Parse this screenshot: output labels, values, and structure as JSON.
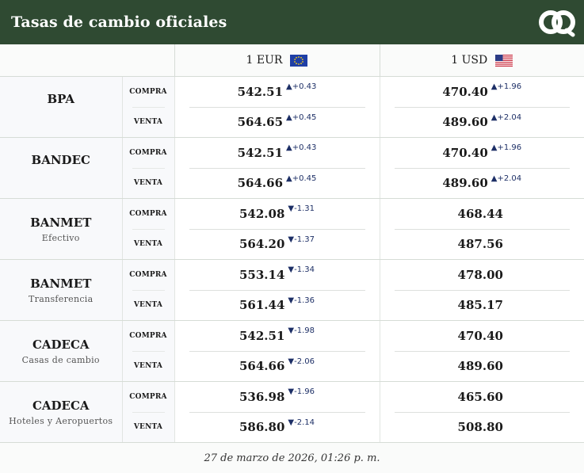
{
  "header": {
    "title": "Tasas de cambio oficiales",
    "logo_icon": "brand-logo"
  },
  "columns": {
    "eur": "1 EUR",
    "usd": "1 USD"
  },
  "labels": {
    "buy": "COMPRA",
    "sell": "VENTA"
  },
  "banks": [
    {
      "name": "BPA",
      "sub": "ᅟ",
      "eur": {
        "buy": "542.51",
        "buy_delta": "▲+0.43",
        "sell": "564.65",
        "sell_delta": "▲+0.45"
      },
      "usd": {
        "buy": "470.40",
        "buy_delta": "▲+1.96",
        "sell": "489.60",
        "sell_delta": "▲+2.04"
      }
    },
    {
      "name": "BANDEC",
      "sub": "ᅟ",
      "eur": {
        "buy": "542.51",
        "buy_delta": "▲+0.43",
        "sell": "564.66",
        "sell_delta": "▲+0.45"
      },
      "usd": {
        "buy": "470.40",
        "buy_delta": "▲+1.96",
        "sell": "489.60",
        "sell_delta": "▲+2.04"
      }
    },
    {
      "name": "BANMET",
      "sub": "Efectivo",
      "eur": {
        "buy": "542.08",
        "buy_delta": "▼-1.31",
        "sell": "564.20",
        "sell_delta": "▼-1.37"
      },
      "usd": {
        "buy": "468.44",
        "buy_delta": "",
        "sell": "487.56",
        "sell_delta": ""
      }
    },
    {
      "name": "BANMET",
      "sub": "Transferencia",
      "eur": {
        "buy": "553.14",
        "buy_delta": "▼-1.34",
        "sell": "561.44",
        "sell_delta": "▼-1.36"
      },
      "usd": {
        "buy": "478.00",
        "buy_delta": "",
        "sell": "485.17",
        "sell_delta": ""
      }
    },
    {
      "name": "CADECA",
      "sub": "Casas de cambio",
      "eur": {
        "buy": "542.51",
        "buy_delta": "▼-1.98",
        "sell": "564.66",
        "sell_delta": "▼-2.06"
      },
      "usd": {
        "buy": "470.40",
        "buy_delta": "",
        "sell": "489.60",
        "sell_delta": ""
      }
    },
    {
      "name": "CADECA",
      "sub": "Hoteles y Aeropuertos",
      "eur": {
        "buy": "536.98",
        "buy_delta": "▼-1.96",
        "sell": "586.80",
        "sell_delta": "▼-2.14"
      },
      "usd": {
        "buy": "465.60",
        "buy_delta": "",
        "sell": "508.80",
        "sell_delta": ""
      }
    }
  ],
  "footer": {
    "timestamp": "27 de marzo de 2026, 01:26 p. m."
  },
  "colors": {
    "header_bg": "#2f4a32",
    "delta": "#1d2f66"
  }
}
